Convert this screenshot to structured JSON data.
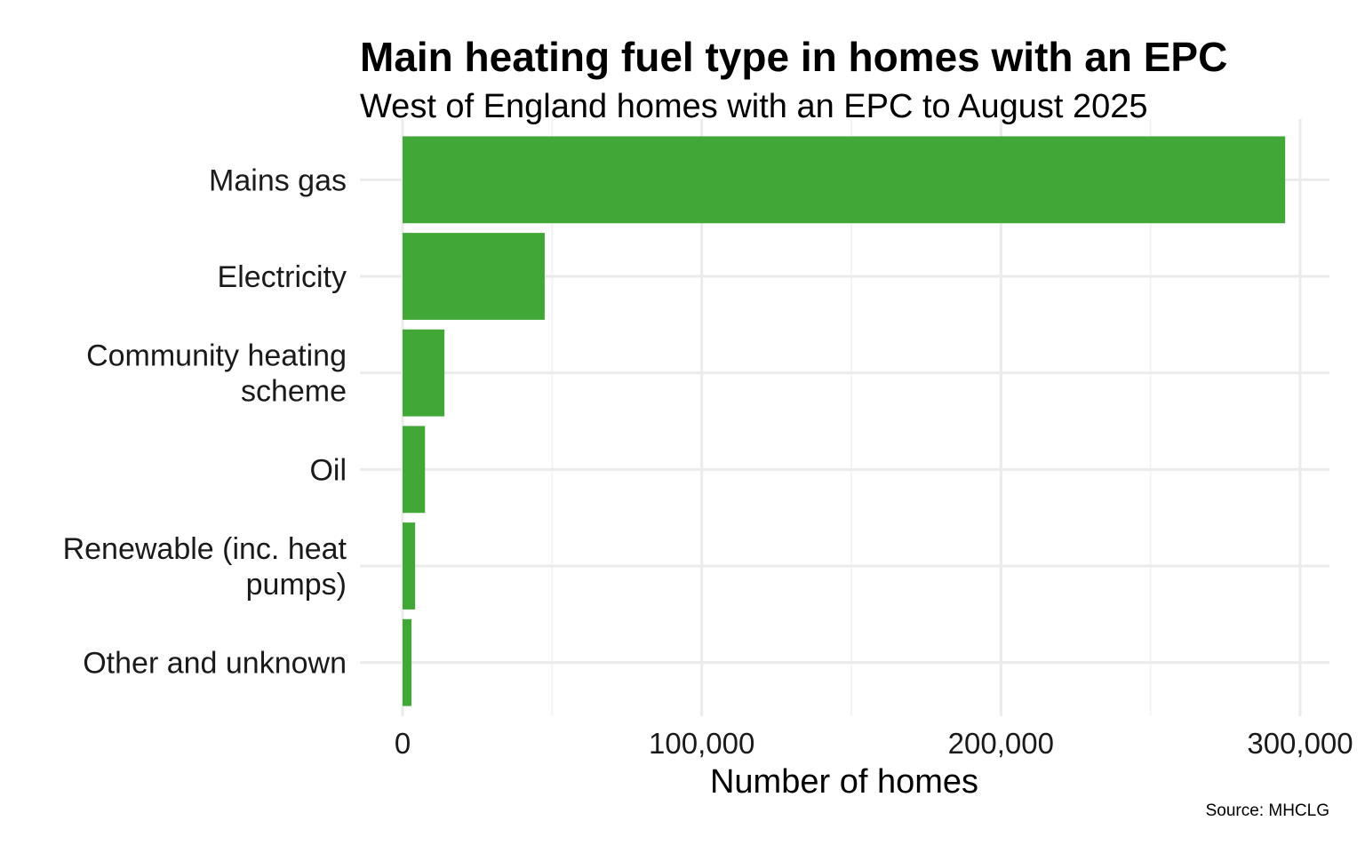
{
  "chart_data": {
    "type": "bar",
    "orientation": "horizontal",
    "title": "Main heating fuel type in homes with an EPC",
    "subtitle": "West of England homes with an EPC to August 2025",
    "xlabel": "Number of homes",
    "ylabel": "",
    "caption": "Source: MHCLG",
    "categories": [
      [
        "Mains gas"
      ],
      [
        "Electricity"
      ],
      [
        "Community heating",
        "scheme"
      ],
      [
        "Oil"
      ],
      [
        "Renewable (inc. heat",
        "pumps)"
      ],
      [
        "Other and unknown"
      ]
    ],
    "values": [
      295000,
      47500,
      14000,
      7500,
      4200,
      3000
    ],
    "xlim": [
      0,
      310000
    ],
    "xticks": [
      0,
      100000,
      200000,
      300000
    ],
    "xtick_labels": [
      "0",
      "100,000",
      "200,000",
      "300,000"
    ],
    "bar_color": "#41a737",
    "grid": true,
    "legend": "none"
  }
}
